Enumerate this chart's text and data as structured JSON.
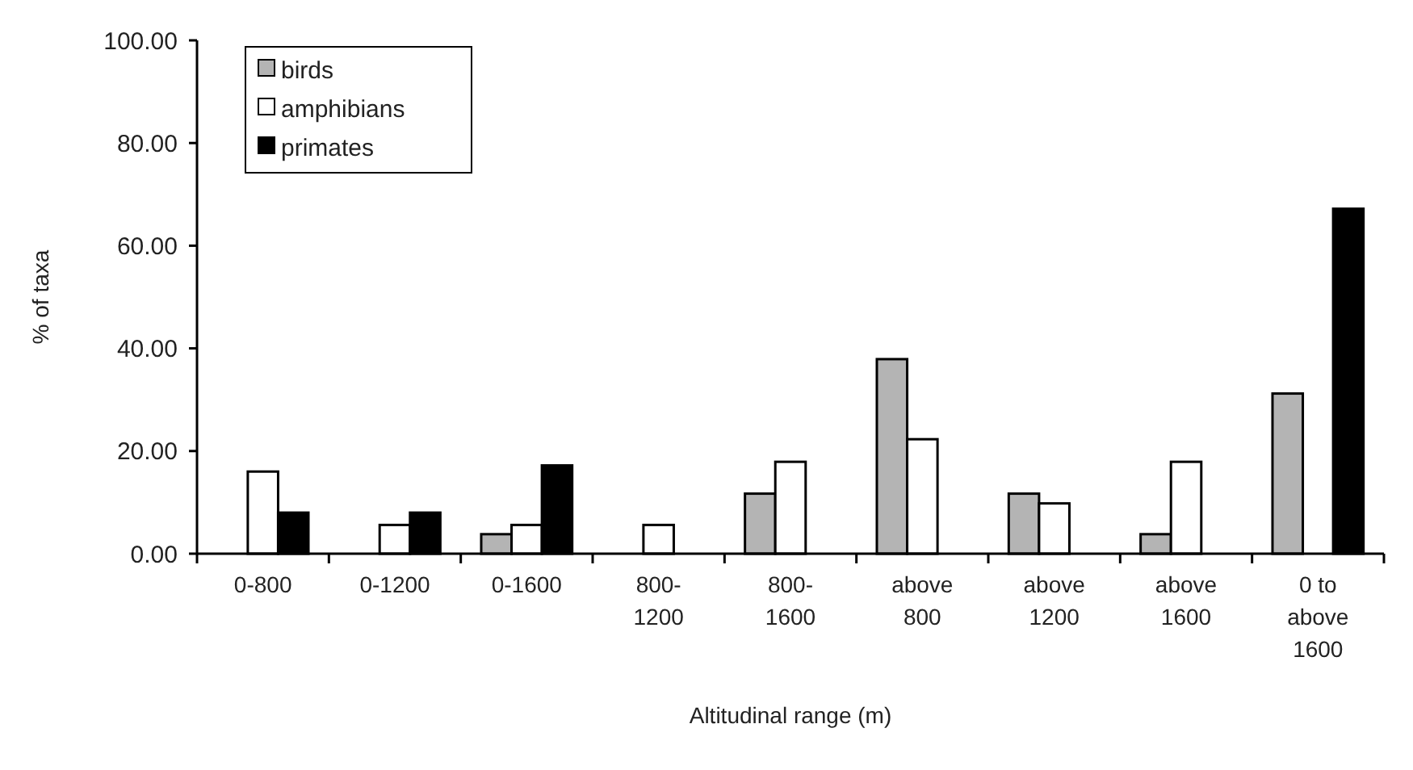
{
  "chart_data": {
    "type": "bar",
    "xlabel": "Altitudinal range (m)",
    "ylabel": "% of taxa",
    "categories": [
      "0-800",
      "0-1200",
      "0-1600",
      "800-\n1200",
      "800-\n1600",
      "above\n800",
      "above\n1200",
      "above\n1600",
      "0 to\nabove\n1600"
    ],
    "series": [
      {
        "name": "birds",
        "color": "#b4b4b4",
        "values": [
          null,
          null,
          3.8,
          null,
          11.7,
          37.9,
          11.7,
          3.8,
          31.2
        ]
      },
      {
        "name": "amphibians",
        "color": "#ffffff",
        "values": [
          16,
          5.6,
          5.6,
          5.6,
          17.9,
          22.3,
          9.8,
          17.9,
          null
        ]
      },
      {
        "name": "primates",
        "color": "#000000",
        "values": [
          8,
          8,
          17.2,
          null,
          null,
          null,
          null,
          null,
          67.2
        ]
      }
    ],
    "ylim": [
      0,
      100
    ],
    "yticks": [
      {
        "value": 0,
        "label": "0.00"
      },
      {
        "value": 20,
        "label": "20.00"
      },
      {
        "value": 40,
        "label": "40.00"
      },
      {
        "value": 60,
        "label": "60.00"
      },
      {
        "value": 80,
        "label": "80.00"
      },
      {
        "value": 100,
        "label": "100.00"
      }
    ],
    "grid": false,
    "legend": "top left"
  }
}
